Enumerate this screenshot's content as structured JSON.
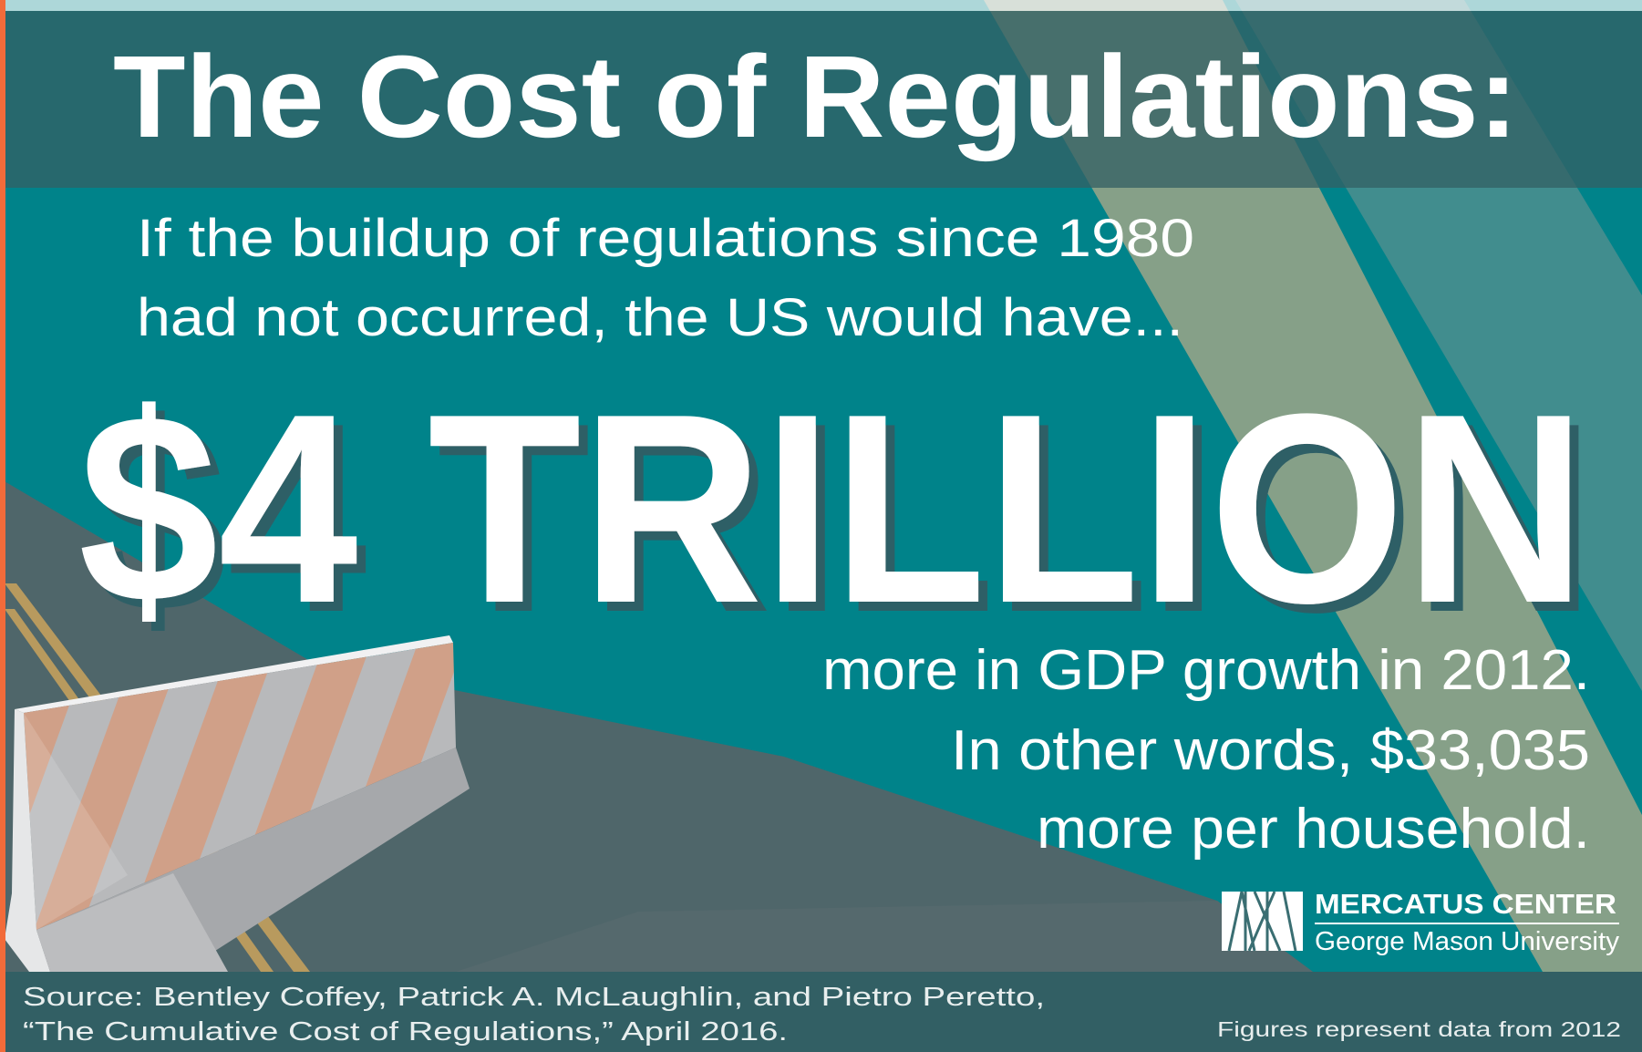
{
  "title": "The Cost of Regulations:",
  "subtitle": {
    "line1": "If the buildup of regulations since 1980",
    "line2": "had not occurred, the US would have..."
  },
  "headline": "$4 TRILLION",
  "detail": {
    "line1": "more in GDP growth in 2012.",
    "line2": "In other words, $33,035",
    "line3": "more per household."
  },
  "logo": {
    "name": "MERCATUS CENTER",
    "affiliation": "George Mason University",
    "icon": "mercatus-mark-icon"
  },
  "footer": {
    "source_line1": "Source: Bentley Coffey, Patrick A. McLaughlin, and Pietro Peretto,",
    "source_line2": "“The Cumulative Cost of Regulations,” April 2016.",
    "note": "Figures represent data from 2012"
  },
  "colors": {
    "background_teal": "#00838a",
    "title_band": "#27686d",
    "stripe_sage": "#86a088",
    "stripe_light_teal": "#418d8e",
    "road_gray": "#4f666a",
    "road_line": "#b89a5e",
    "barrier_orange": "#d9a080",
    "footer": "#325f64",
    "accent_edge": "#f26b3a",
    "text": "#ffffff"
  }
}
